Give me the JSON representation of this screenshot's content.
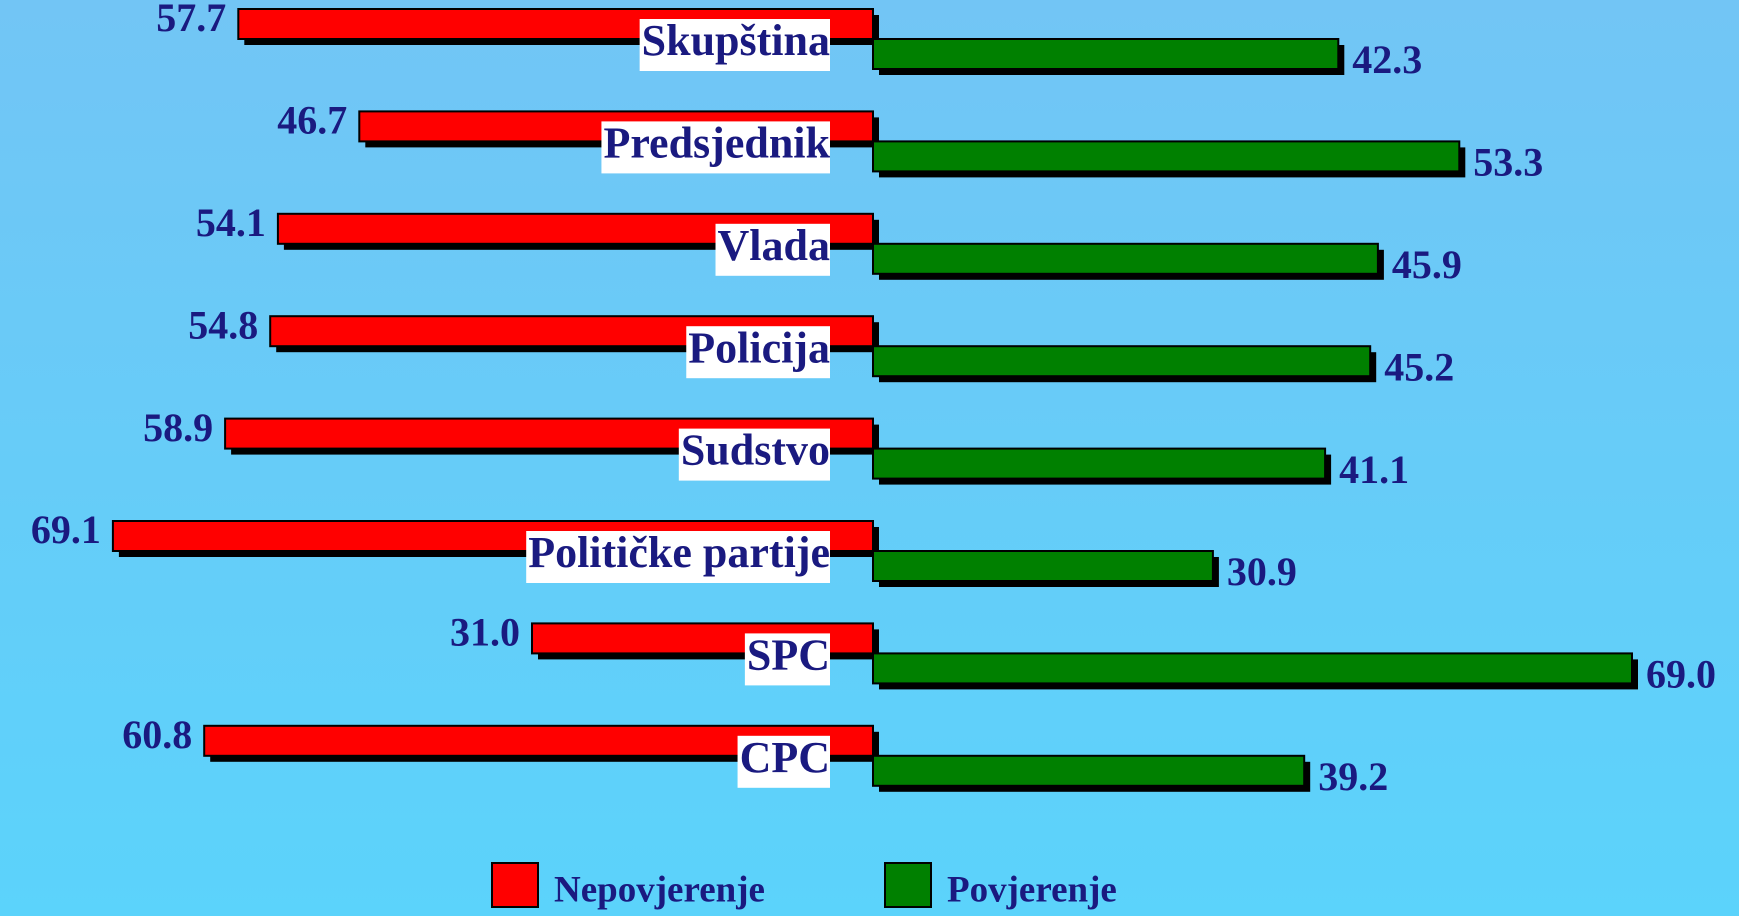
{
  "chart_data": {
    "type": "diverging_bar",
    "categories": [
      "Skupština",
      "Predsjednik",
      "Vlada",
      "Policija",
      "Sudstvo",
      "Političke partije",
      "SPC",
      "CPC"
    ],
    "series": [
      {
        "name": "Nepovjerenje",
        "color": "#ff0000",
        "values": [
          57.7,
          46.7,
          54.1,
          54.8,
          58.9,
          69.1,
          31.0,
          60.8
        ],
        "value_labels": [
          "57.7",
          "46.7",
          "54.1",
          "54.8",
          "58.9",
          "69.1",
          "31.0",
          "60.8"
        ]
      },
      {
        "name": "Povjerenje",
        "color": "#008000",
        "values": [
          42.3,
          53.3,
          45.9,
          45.2,
          41.1,
          30.9,
          69.0,
          39.2
        ],
        "value_labels": [
          "42.3",
          "53.3",
          "45.9",
          "45.2",
          "41.1",
          "30.9",
          "69.0",
          "39.2"
        ]
      }
    ],
    "legend": "bottom"
  }
}
